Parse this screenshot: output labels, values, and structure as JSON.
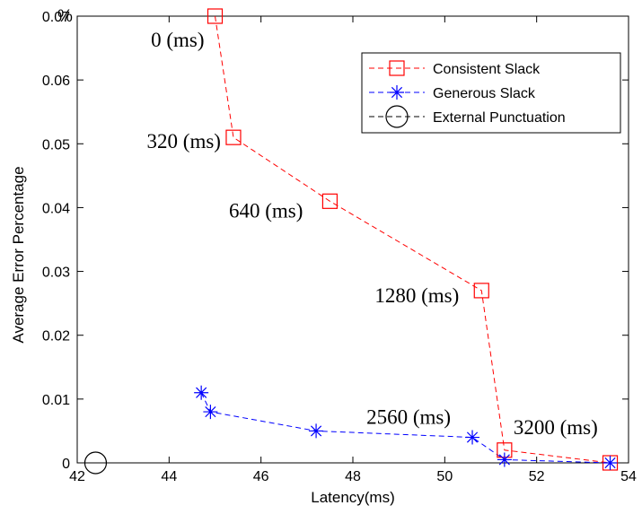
{
  "chart_data": {
    "type": "line",
    "title": "",
    "xlabel": "Latency(ms)",
    "ylabel": "Average Error Percentage",
    "y_unit": "%",
    "xlim": [
      42,
      54
    ],
    "ylim": [
      0,
      0.07
    ],
    "xticks": [
      42,
      44,
      46,
      48,
      50,
      52,
      54
    ],
    "yticks": [
      0,
      0.01,
      0.02,
      0.03,
      0.04,
      0.05,
      0.06,
      0.07
    ],
    "grid": false,
    "legend_position": "top-right",
    "series": [
      {
        "name": "Consistent Slack",
        "color": "#ff0000",
        "marker": "square",
        "line_style": "dashed",
        "points": [
          [
            45.0,
            0.07
          ],
          [
            45.4,
            0.051
          ],
          [
            47.5,
            0.041
          ],
          [
            50.8,
            0.027
          ],
          [
            51.3,
            0.002
          ],
          [
            53.6,
            0.0
          ]
        ]
      },
      {
        "name": "Generous Slack",
        "color": "#0000ff",
        "marker": "asterisk",
        "line_style": "dashed",
        "points": [
          [
            44.7,
            0.011
          ],
          [
            44.9,
            0.008
          ],
          [
            47.2,
            0.005
          ],
          [
            50.6,
            0.004
          ],
          [
            51.3,
            0.0005
          ],
          [
            53.6,
            0.0
          ]
        ]
      },
      {
        "name": "External Punctuation",
        "color": "#000000",
        "marker": "circle",
        "line_style": "dashed",
        "points": [
          [
            42.4,
            0.0
          ]
        ]
      }
    ],
    "annotations": [
      {
        "text": "0 (ms)",
        "x": 45.0,
        "y": 0.07
      },
      {
        "text": "320 (ms)",
        "x": 45.4,
        "y": 0.051
      },
      {
        "text": "640 (ms)",
        "x": 47.5,
        "y": 0.041
      },
      {
        "text": "1280 (ms)",
        "x": 50.8,
        "y": 0.027
      },
      {
        "text": "2560 (ms)",
        "x": 50.6,
        "y": 0.004
      },
      {
        "text": "3200 (ms)",
        "x": 51.3,
        "y": 0.002
      }
    ]
  }
}
